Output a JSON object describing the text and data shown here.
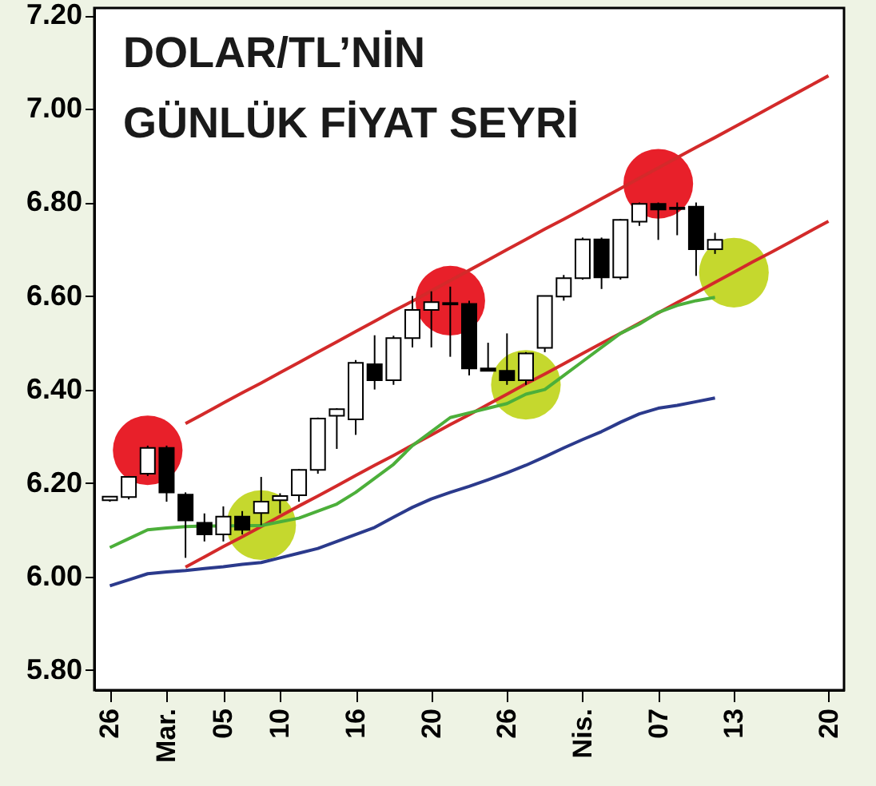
{
  "chart_data": {
    "type": "candlestick",
    "title": "DOLAR/TL’NİN\nGÜNLÜK FİYAT SEYRİ",
    "categories": [
      "26",
      null,
      null,
      "Mar.",
      null,
      null,
      "05",
      null,
      null,
      "10",
      null,
      null,
      null,
      "16",
      null,
      null,
      null,
      "20",
      null,
      null,
      null,
      "26",
      null,
      null,
      null,
      "Nis.",
      null,
      null,
      null,
      "07",
      null,
      null,
      null,
      "13",
      null,
      null,
      null,
      null,
      "20"
    ],
    "ohlc": [
      [
        6.163,
        6.172,
        6.16,
        6.171
      ],
      [
        6.17,
        6.215,
        6.165,
        6.213
      ],
      [
        6.22,
        6.28,
        6.215,
        6.275
      ],
      [
        6.275,
        6.28,
        6.16,
        6.18
      ],
      [
        6.175,
        6.18,
        6.04,
        6.12
      ],
      [
        6.115,
        6.135,
        6.075,
        6.09
      ],
      [
        6.09,
        6.15,
        6.075,
        6.128
      ],
      [
        6.128,
        6.14,
        6.09,
        6.1
      ],
      [
        6.136,
        6.213,
        6.11,
        6.16
      ],
      [
        6.163,
        6.178,
        6.135,
        6.172
      ],
      [
        6.174,
        6.23,
        6.16,
        6.228
      ],
      [
        6.228,
        6.34,
        6.22,
        6.338
      ],
      [
        6.344,
        6.36,
        6.273,
        6.358
      ],
      [
        6.336,
        6.463,
        6.303,
        6.457
      ],
      [
        6.454,
        6.516,
        6.4,
        6.42
      ],
      [
        6.42,
        6.515,
        6.41,
        6.51
      ],
      [
        6.51,
        6.6,
        6.49,
        6.57
      ],
      [
        6.57,
        6.61,
        6.49,
        6.587
      ],
      [
        6.582,
        6.62,
        6.47,
        6.585
      ],
      [
        6.583,
        6.59,
        6.43,
        6.445
      ],
      [
        6.445,
        6.5,
        6.44,
        6.44
      ],
      [
        6.44,
        6.52,
        6.41,
        6.42
      ],
      [
        6.42,
        6.48,
        6.41,
        6.477
      ],
      [
        6.489,
        6.6,
        6.48,
        6.6
      ],
      [
        6.599,
        6.645,
        6.59,
        6.638
      ],
      [
        6.638,
        6.725,
        6.635,
        6.721
      ],
      [
        6.721,
        6.725,
        6.615,
        6.64
      ],
      [
        6.64,
        6.765,
        6.635,
        6.763
      ],
      [
        6.759,
        6.8,
        6.75,
        6.797
      ],
      [
        6.797,
        6.8,
        6.72,
        6.785
      ],
      [
        6.786,
        6.8,
        6.73,
        6.789
      ],
      [
        6.791,
        6.8,
        6.643,
        6.7
      ],
      [
        6.7,
        6.735,
        6.69,
        6.72
      ],
      null,
      null,
      null,
      null,
      null,
      null
    ],
    "series": [
      {
        "type": "scatter",
        "color": "#e8202a",
        "values": [
          null,
          null,
          6.27,
          null,
          null,
          null,
          null,
          null,
          null,
          null,
          null,
          null,
          null,
          null,
          null,
          null,
          null,
          null,
          6.59,
          null,
          null,
          null,
          null,
          null,
          null,
          null,
          null,
          null,
          null,
          6.84,
          null,
          null,
          null,
          null,
          null,
          null,
          null,
          null,
          null
        ]
      },
      {
        "type": "scatter",
        "color": "#c5d82e",
        "values": [
          null,
          null,
          null,
          null,
          null,
          null,
          null,
          null,
          6.11,
          null,
          null,
          null,
          null,
          null,
          null,
          null,
          null,
          null,
          null,
          null,
          null,
          null,
          6.41,
          null,
          null,
          null,
          null,
          null,
          null,
          null,
          null,
          null,
          null,
          6.65,
          null,
          null,
          null,
          null,
          null
        ]
      },
      {
        "type": "line",
        "color": "#d32a2a",
        "values": [
          null,
          null,
          null,
          null,
          6.327,
          6.349,
          6.371,
          6.393,
          6.414,
          6.436,
          6.458,
          6.48,
          6.502,
          6.524,
          6.546,
          6.568,
          6.589,
          6.611,
          6.633,
          6.655,
          6.677,
          6.699,
          6.721,
          6.743,
          6.764,
          6.786,
          6.808,
          6.83,
          6.852,
          6.874,
          6.896,
          6.918,
          6.939,
          6.961,
          6.983,
          7.005,
          7.027,
          7.049,
          7.071
        ]
      },
      {
        "type": "line",
        "color": "#d32a2a",
        "values": [
          null,
          null,
          null,
          null,
          6.02,
          6.042,
          6.064,
          6.085,
          6.107,
          6.129,
          6.151,
          6.172,
          6.194,
          6.216,
          6.238,
          6.259,
          6.281,
          6.303,
          6.325,
          6.346,
          6.368,
          6.39,
          6.412,
          6.433,
          6.455,
          6.477,
          6.499,
          6.52,
          6.542,
          6.564,
          6.586,
          6.607,
          6.629,
          6.651,
          6.673,
          6.694,
          6.716,
          6.738,
          6.76
        ]
      },
      {
        "type": "line",
        "color": "#4caf3a",
        "values": [
          6.062,
          6.081,
          6.1,
          6.104,
          6.107,
          6.108,
          6.108,
          6.109,
          6.109,
          6.117,
          6.125,
          6.14,
          6.155,
          6.18,
          6.21,
          6.24,
          6.28,
          6.31,
          6.34,
          6.35,
          6.36,
          6.37,
          6.39,
          6.4,
          6.43,
          6.46,
          6.49,
          6.52,
          6.54,
          6.565,
          6.58,
          6.59,
          6.597,
          null,
          null,
          null,
          null,
          null,
          null
        ]
      },
      {
        "type": "line",
        "color": "#2b3a8c",
        "values": [
          5.98,
          5.993,
          6.006,
          6.01,
          6.013,
          6.017,
          6.021,
          6.026,
          6.03,
          6.04,
          6.05,
          6.06,
          6.075,
          6.09,
          6.105,
          6.127,
          6.148,
          6.166,
          6.18,
          6.193,
          6.207,
          6.222,
          6.238,
          6.256,
          6.275,
          6.293,
          6.31,
          6.33,
          6.348,
          6.36,
          6.366,
          6.374,
          6.382,
          null,
          null,
          null,
          null,
          null,
          null
        ]
      }
    ],
    "ylim": [
      5.757,
      7.216
    ],
    "yticks": [
      {
        "value": 5.8,
        "label": "5.80"
      },
      {
        "value": 6.0,
        "label": "6.00"
      },
      {
        "value": 6.2,
        "label": "6.20"
      },
      {
        "value": 6.4,
        "label": "6.40"
      },
      {
        "value": 6.6,
        "label": "6.60"
      },
      {
        "value": 6.8,
        "label": "6.80"
      },
      {
        "value": 7.0,
        "label": "7.00"
      },
      {
        "value": 7.2,
        "label": "7.20"
      }
    ],
    "grid": false
  }
}
